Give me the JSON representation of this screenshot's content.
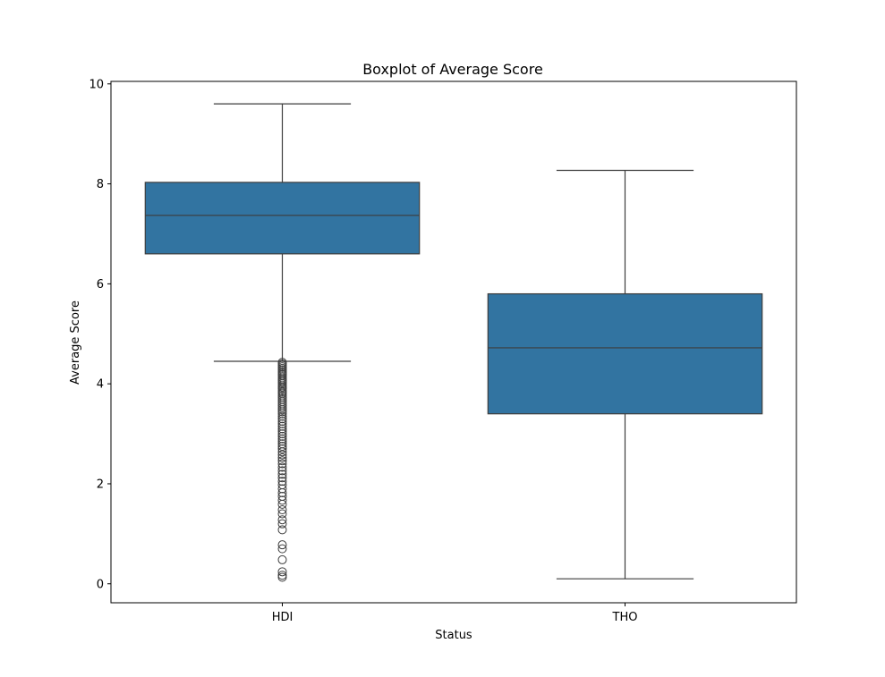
{
  "chart_data": {
    "type": "box",
    "title": "Boxplot of Average Score",
    "xlabel": "Status",
    "ylabel": "Average Score",
    "ylim": [
      -0.38,
      10.05
    ],
    "yticks": [
      "0",
      "2",
      "4",
      "6",
      "8",
      "10"
    ],
    "ytick_values": [
      0,
      2,
      4,
      6,
      8,
      10
    ],
    "grid": false,
    "box_color": "#3274a1",
    "line_color": "#3d3d3d",
    "categories": [
      "HDI",
      "THO"
    ],
    "boxes": [
      {
        "category": "HDI",
        "whisker_low": 4.45,
        "q1": 6.6,
        "median": 7.37,
        "q3": 8.03,
        "whisker_high": 9.6,
        "fliers": [
          4.43,
          4.4,
          4.37,
          4.34,
          4.31,
          4.28,
          4.25,
          4.22,
          4.19,
          4.16,
          4.12,
          4.09,
          4.06,
          4.03,
          4.0,
          3.96,
          3.93,
          3.9,
          3.86,
          3.83,
          3.8,
          3.76,
          3.72,
          3.68,
          3.64,
          3.6,
          3.56,
          3.52,
          3.48,
          3.44,
          3.4,
          3.35,
          3.3,
          3.25,
          3.2,
          3.15,
          3.1,
          3.05,
          3.0,
          2.95,
          2.9,
          2.85,
          2.8,
          2.75,
          2.7,
          2.64,
          2.58,
          2.52,
          2.46,
          2.4,
          2.33,
          2.26,
          2.19,
          2.12,
          2.05,
          1.98,
          1.9,
          1.82,
          1.75,
          1.67,
          1.59,
          1.48,
          1.4,
          1.28,
          1.2,
          1.08,
          0.78,
          0.7,
          0.48,
          0.24,
          0.17,
          0.13
        ]
      },
      {
        "category": "THO",
        "whisker_low": 0.1,
        "q1": 3.4,
        "median": 4.72,
        "q3": 5.8,
        "whisker_high": 8.27,
        "fliers": []
      }
    ]
  }
}
